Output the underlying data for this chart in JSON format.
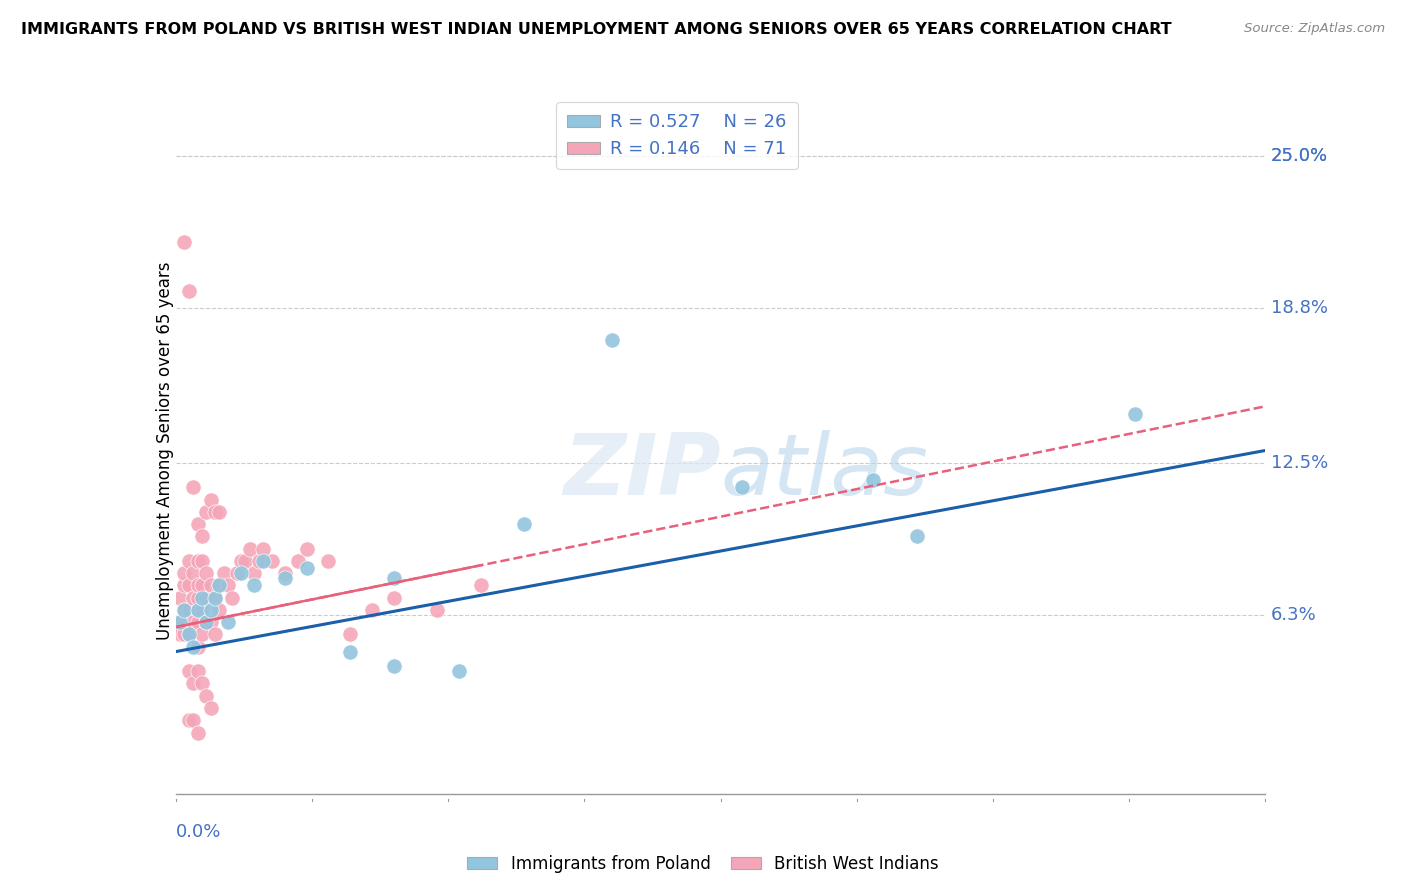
{
  "title": "IMMIGRANTS FROM POLAND VS BRITISH WEST INDIAN UNEMPLOYMENT AMONG SENIORS OVER 65 YEARS CORRELATION CHART",
  "source": "Source: ZipAtlas.com",
  "ylabel": "Unemployment Among Seniors over 65 years",
  "ytick_labels": [
    "25.0%",
    "18.8%",
    "12.5%",
    "6.3%"
  ],
  "ytick_values": [
    0.25,
    0.188,
    0.125,
    0.063
  ],
  "xlim": [
    0.0,
    0.25
  ],
  "ylim": [
    -0.01,
    0.27
  ],
  "legend_r1": "R = 0.527",
  "legend_n1": "N = 26",
  "legend_r2": "R = 0.146",
  "legend_n2": "N = 71",
  "color_poland": "#92c5de",
  "color_bwi": "#f4a6b8",
  "trend_color_poland": "#1a5fa8",
  "trend_color_bwi": "#e8607a",
  "poland_x": [
    0.001,
    0.002,
    0.003,
    0.004,
    0.005,
    0.006,
    0.007,
    0.008,
    0.009,
    0.01,
    0.012,
    0.015,
    0.018,
    0.02,
    0.025,
    0.03,
    0.04,
    0.05,
    0.065,
    0.08,
    0.1,
    0.13,
    0.17,
    0.22,
    0.05,
    0.16
  ],
  "poland_y": [
    0.06,
    0.065,
    0.055,
    0.05,
    0.065,
    0.07,
    0.06,
    0.065,
    0.07,
    0.075,
    0.06,
    0.08,
    0.075,
    0.085,
    0.078,
    0.082,
    0.048,
    0.042,
    0.04,
    0.1,
    0.175,
    0.115,
    0.095,
    0.145,
    0.078,
    0.118
  ],
  "bwi_x": [
    0.001,
    0.001,
    0.001,
    0.002,
    0.002,
    0.002,
    0.002,
    0.003,
    0.003,
    0.003,
    0.003,
    0.004,
    0.004,
    0.004,
    0.005,
    0.005,
    0.005,
    0.005,
    0.005,
    0.005,
    0.006,
    0.006,
    0.006,
    0.006,
    0.007,
    0.007,
    0.007,
    0.008,
    0.008,
    0.009,
    0.009,
    0.01,
    0.01,
    0.011,
    0.012,
    0.013,
    0.014,
    0.015,
    0.016,
    0.017,
    0.018,
    0.019,
    0.02,
    0.022,
    0.025,
    0.028,
    0.03,
    0.035,
    0.04,
    0.045,
    0.05,
    0.06,
    0.07,
    0.002,
    0.003,
    0.004,
    0.005,
    0.006,
    0.007,
    0.008,
    0.009,
    0.01,
    0.003,
    0.004,
    0.005,
    0.006,
    0.007,
    0.008,
    0.003,
    0.004,
    0.005
  ],
  "bwi_y": [
    0.06,
    0.055,
    0.07,
    0.065,
    0.055,
    0.075,
    0.08,
    0.055,
    0.065,
    0.075,
    0.085,
    0.06,
    0.07,
    0.08,
    0.05,
    0.06,
    0.065,
    0.07,
    0.075,
    0.085,
    0.055,
    0.065,
    0.075,
    0.085,
    0.06,
    0.07,
    0.08,
    0.06,
    0.075,
    0.055,
    0.07,
    0.065,
    0.075,
    0.08,
    0.075,
    0.07,
    0.08,
    0.085,
    0.085,
    0.09,
    0.08,
    0.085,
    0.09,
    0.085,
    0.08,
    0.085,
    0.09,
    0.085,
    0.055,
    0.065,
    0.07,
    0.065,
    0.075,
    0.215,
    0.195,
    0.115,
    0.1,
    0.095,
    0.105,
    0.11,
    0.105,
    0.105,
    0.04,
    0.035,
    0.04,
    0.035,
    0.03,
    0.025,
    0.02,
    0.02,
    0.015
  ],
  "poland_trend_x0": 0.0,
  "poland_trend_y0": 0.048,
  "poland_trend_x1": 0.25,
  "poland_trend_y1": 0.13,
  "bwi_trend_x0": 0.0,
  "bwi_trend_y0": 0.058,
  "bwi_trend_x1": 0.25,
  "bwi_trend_y1": 0.148
}
